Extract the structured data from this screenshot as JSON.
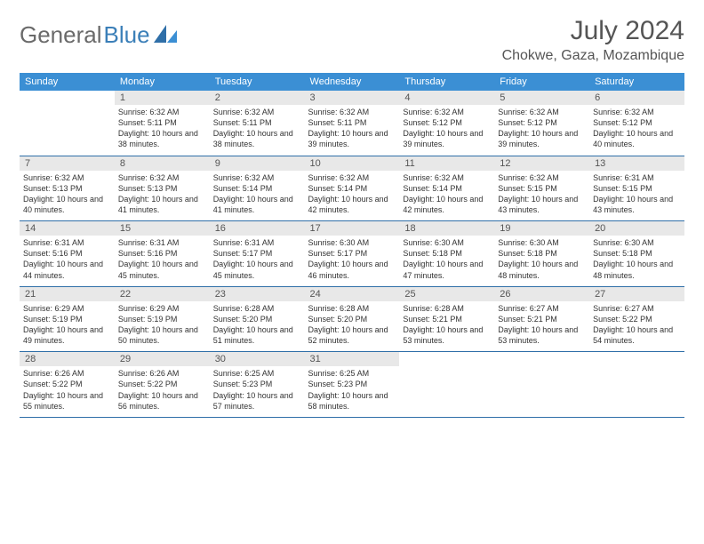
{
  "brand": {
    "part1": "General",
    "part2": "Blue"
  },
  "title": "July 2024",
  "location": "Chokwe, Gaza, Mozambique",
  "colors": {
    "header_bg": "#3b8fd4",
    "header_text": "#ffffff",
    "daynum_bg": "#e8e8e8",
    "border": "#2f6fa8",
    "text": "#333333",
    "title_text": "#555555",
    "brand_gray": "#6a6a6a",
    "brand_blue": "#3b7fb8",
    "page_bg": "#ffffff"
  },
  "typography": {
    "month_title_pt": 30,
    "location_pt": 16,
    "dayheader_pt": 11,
    "daynum_pt": 11,
    "cell_pt": 9
  },
  "layout": {
    "cols": 7,
    "rows": 5,
    "first_weekday_offset": 1
  },
  "day_names": [
    "Sunday",
    "Monday",
    "Tuesday",
    "Wednesday",
    "Thursday",
    "Friday",
    "Saturday"
  ],
  "days": [
    {
      "n": 1,
      "sr": "6:32 AM",
      "ss": "5:11 PM",
      "dl": "10 hours and 38 minutes."
    },
    {
      "n": 2,
      "sr": "6:32 AM",
      "ss": "5:11 PM",
      "dl": "10 hours and 38 minutes."
    },
    {
      "n": 3,
      "sr": "6:32 AM",
      "ss": "5:11 PM",
      "dl": "10 hours and 39 minutes."
    },
    {
      "n": 4,
      "sr": "6:32 AM",
      "ss": "5:12 PM",
      "dl": "10 hours and 39 minutes."
    },
    {
      "n": 5,
      "sr": "6:32 AM",
      "ss": "5:12 PM",
      "dl": "10 hours and 39 minutes."
    },
    {
      "n": 6,
      "sr": "6:32 AM",
      "ss": "5:12 PM",
      "dl": "10 hours and 40 minutes."
    },
    {
      "n": 7,
      "sr": "6:32 AM",
      "ss": "5:13 PM",
      "dl": "10 hours and 40 minutes."
    },
    {
      "n": 8,
      "sr": "6:32 AM",
      "ss": "5:13 PM",
      "dl": "10 hours and 41 minutes."
    },
    {
      "n": 9,
      "sr": "6:32 AM",
      "ss": "5:14 PM",
      "dl": "10 hours and 41 minutes."
    },
    {
      "n": 10,
      "sr": "6:32 AM",
      "ss": "5:14 PM",
      "dl": "10 hours and 42 minutes."
    },
    {
      "n": 11,
      "sr": "6:32 AM",
      "ss": "5:14 PM",
      "dl": "10 hours and 42 minutes."
    },
    {
      "n": 12,
      "sr": "6:32 AM",
      "ss": "5:15 PM",
      "dl": "10 hours and 43 minutes."
    },
    {
      "n": 13,
      "sr": "6:31 AM",
      "ss": "5:15 PM",
      "dl": "10 hours and 43 minutes."
    },
    {
      "n": 14,
      "sr": "6:31 AM",
      "ss": "5:16 PM",
      "dl": "10 hours and 44 minutes."
    },
    {
      "n": 15,
      "sr": "6:31 AM",
      "ss": "5:16 PM",
      "dl": "10 hours and 45 minutes."
    },
    {
      "n": 16,
      "sr": "6:31 AM",
      "ss": "5:17 PM",
      "dl": "10 hours and 45 minutes."
    },
    {
      "n": 17,
      "sr": "6:30 AM",
      "ss": "5:17 PM",
      "dl": "10 hours and 46 minutes."
    },
    {
      "n": 18,
      "sr": "6:30 AM",
      "ss": "5:18 PM",
      "dl": "10 hours and 47 minutes."
    },
    {
      "n": 19,
      "sr": "6:30 AM",
      "ss": "5:18 PM",
      "dl": "10 hours and 48 minutes."
    },
    {
      "n": 20,
      "sr": "6:30 AM",
      "ss": "5:18 PM",
      "dl": "10 hours and 48 minutes."
    },
    {
      "n": 21,
      "sr": "6:29 AM",
      "ss": "5:19 PM",
      "dl": "10 hours and 49 minutes."
    },
    {
      "n": 22,
      "sr": "6:29 AM",
      "ss": "5:19 PM",
      "dl": "10 hours and 50 minutes."
    },
    {
      "n": 23,
      "sr": "6:28 AM",
      "ss": "5:20 PM",
      "dl": "10 hours and 51 minutes."
    },
    {
      "n": 24,
      "sr": "6:28 AM",
      "ss": "5:20 PM",
      "dl": "10 hours and 52 minutes."
    },
    {
      "n": 25,
      "sr": "6:28 AM",
      "ss": "5:21 PM",
      "dl": "10 hours and 53 minutes."
    },
    {
      "n": 26,
      "sr": "6:27 AM",
      "ss": "5:21 PM",
      "dl": "10 hours and 53 minutes."
    },
    {
      "n": 27,
      "sr": "6:27 AM",
      "ss": "5:22 PM",
      "dl": "10 hours and 54 minutes."
    },
    {
      "n": 28,
      "sr": "6:26 AM",
      "ss": "5:22 PM",
      "dl": "10 hours and 55 minutes."
    },
    {
      "n": 29,
      "sr": "6:26 AM",
      "ss": "5:22 PM",
      "dl": "10 hours and 56 minutes."
    },
    {
      "n": 30,
      "sr": "6:25 AM",
      "ss": "5:23 PM",
      "dl": "10 hours and 57 minutes."
    },
    {
      "n": 31,
      "sr": "6:25 AM",
      "ss": "5:23 PM",
      "dl": "10 hours and 58 minutes."
    }
  ],
  "labels": {
    "sunrise": "Sunrise:",
    "sunset": "Sunset:",
    "daylight": "Daylight:"
  }
}
